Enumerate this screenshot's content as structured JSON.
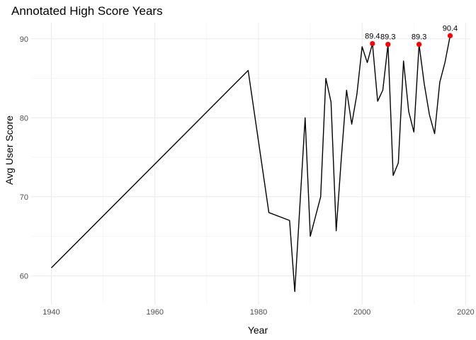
{
  "chart_data": {
    "type": "line",
    "title": "Annotated High Score Years",
    "xlabel": "Year",
    "ylabel": "Avg User Score",
    "xlim": [
      1936.1,
      2020.9
    ],
    "ylim": [
      56.35,
      92.05
    ],
    "x_ticks": [
      1940,
      1960,
      1980,
      2000,
      2020
    ],
    "y_ticks": [
      60,
      70,
      80,
      90
    ],
    "grid": true,
    "legend": "none",
    "line_color": "#000000",
    "highlight_color": "#ff0000",
    "series": [
      {
        "x": [
          1940,
          1978,
          1982,
          1986,
          1987,
          1989,
          1990,
          1992,
          1993,
          1994,
          1995,
          1996,
          1997,
          1998,
          1999,
          2000,
          2001,
          2002,
          2003,
          2004,
          2005,
          2006,
          2007,
          2008,
          2009,
          2010,
          2011,
          2012,
          2013,
          2014,
          2015,
          2016,
          2017
        ],
        "y": [
          61.0,
          86.0,
          68.0,
          67.0,
          58.0,
          80.0,
          65.0,
          70.0,
          85.0,
          82.0,
          65.7,
          75.0,
          83.5,
          79.2,
          83.0,
          89.0,
          87.0,
          89.4,
          82.1,
          83.5,
          89.3,
          72.7,
          74.3,
          87.2,
          80.8,
          78.2,
          89.3,
          84.3,
          80.4,
          78.0,
          84.5,
          87.0,
          90.4
        ]
      }
    ],
    "annotations": [
      {
        "x": 2002,
        "y": 89.4,
        "label": "89.4"
      },
      {
        "x": 2005,
        "y": 89.3,
        "label": "89.3"
      },
      {
        "x": 2011,
        "y": 89.3,
        "label": "89.3"
      },
      {
        "x": 2017,
        "y": 90.4,
        "label": "90.4"
      }
    ]
  }
}
